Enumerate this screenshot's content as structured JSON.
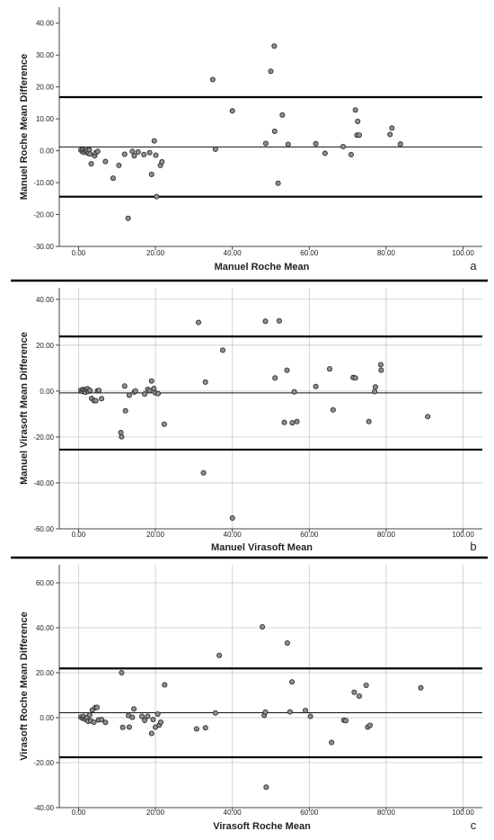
{
  "chart_data": [
    {
      "type": "scatter",
      "panel_label": "a",
      "xlabel": "Manuel Roche Mean",
      "ylabel": "Manuel Roche Mean Difference",
      "xlim": [
        -5,
        105
      ],
      "ylim": [
        -30,
        45
      ],
      "xticks": [
        0,
        20,
        40,
        60,
        80,
        100
      ],
      "yticks": [
        -30,
        -20,
        -10,
        0,
        10,
        20,
        30,
        40
      ],
      "grid": false,
      "reference_lines": {
        "mean": 1.2,
        "upper_loa": 16.8,
        "lower_loa": -14.4
      },
      "points": [
        [
          0.6,
          0.2
        ],
        [
          1.0,
          -0.3
        ],
        [
          1.2,
          0.4
        ],
        [
          1.5,
          -0.5
        ],
        [
          1.8,
          0.1
        ],
        [
          2.0,
          0.5
        ],
        [
          2.2,
          -0.2
        ],
        [
          2.5,
          -0.8
        ],
        [
          2.8,
          0.3
        ],
        [
          3.0,
          -1.0
        ],
        [
          3.3,
          -4.1
        ],
        [
          4.2,
          -1.6
        ],
        [
          4.5,
          -0.6
        ],
        [
          5.0,
          -0.2
        ],
        [
          7.0,
          -3.4
        ],
        [
          9.0,
          -8.6
        ],
        [
          10.5,
          -4.6
        ],
        [
          12.0,
          -1.1
        ],
        [
          12.9,
          -21.2
        ],
        [
          14.0,
          -0.2
        ],
        [
          14.5,
          -1.6
        ],
        [
          15.5,
          -0.4
        ],
        [
          17.0,
          -1.2
        ],
        [
          18.5,
          -0.6
        ],
        [
          19.0,
          -7.4
        ],
        [
          19.7,
          3.1
        ],
        [
          20.1,
          -1.4
        ],
        [
          20.3,
          -14.4
        ],
        [
          21.3,
          -4.6
        ],
        [
          21.7,
          -3.5
        ],
        [
          34.9,
          22.3
        ],
        [
          35.6,
          0.5
        ],
        [
          40.0,
          12.5
        ],
        [
          48.7,
          2.3
        ],
        [
          50.0,
          24.9
        ],
        [
          50.9,
          32.8
        ],
        [
          51.0,
          6.1
        ],
        [
          51.9,
          -10.2
        ],
        [
          53.0,
          11.2
        ],
        [
          54.5,
          2.0
        ],
        [
          61.7,
          2.2
        ],
        [
          64.1,
          -0.8
        ],
        [
          68.8,
          1.3
        ],
        [
          70.9,
          -1.2
        ],
        [
          72.0,
          12.8
        ],
        [
          72.4,
          4.9
        ],
        [
          72.6,
          9.2
        ],
        [
          73.0,
          4.9
        ],
        [
          81.0,
          5.1
        ],
        [
          81.5,
          7.1
        ],
        [
          83.7,
          2.1
        ]
      ]
    },
    {
      "type": "scatter",
      "panel_label": "b",
      "xlabel": "Manuel Virasoft Mean",
      "ylabel": "Manuel Virasoft Mean Difference",
      "xlim": [
        -5,
        105
      ],
      "ylim": [
        -60,
        45
      ],
      "xticks": [
        0,
        20,
        40,
        60,
        80,
        100
      ],
      "yticks": [
        -60,
        -40,
        -20,
        0,
        20,
        40
      ],
      "grid": true,
      "reference_lines": {
        "mean": -0.8,
        "upper_loa": 23.8,
        "lower_loa": -25.5
      },
      "points": [
        [
          0.6,
          0.4
        ],
        [
          1.0,
          -0.2
        ],
        [
          1.2,
          0.8
        ],
        [
          1.5,
          0.2
        ],
        [
          1.8,
          -0.5
        ],
        [
          2.1,
          0.6
        ],
        [
          2.3,
          1.0
        ],
        [
          2.6,
          -0.1
        ],
        [
          3.0,
          0.3
        ],
        [
          3.4,
          -3.2
        ],
        [
          4.0,
          -4.1
        ],
        [
          4.5,
          -4.2
        ],
        [
          4.9,
          0.1
        ],
        [
          5.3,
          0.3
        ],
        [
          6.0,
          -3.3
        ],
        [
          11.0,
          -18.1
        ],
        [
          11.2,
          -19.9
        ],
        [
          12.0,
          2.2
        ],
        [
          12.2,
          -8.6
        ],
        [
          13.2,
          -1.8
        ],
        [
          14.5,
          -0.4
        ],
        [
          14.8,
          0.1
        ],
        [
          17.2,
          -1.3
        ],
        [
          18.0,
          0.8
        ],
        [
          18.5,
          0.2
        ],
        [
          19.0,
          4.4
        ],
        [
          19.6,
          1.1
        ],
        [
          20.0,
          -0.8
        ],
        [
          20.7,
          -1.1
        ],
        [
          22.3,
          -14.4
        ],
        [
          31.2,
          29.9
        ],
        [
          32.5,
          -35.6
        ],
        [
          33.0,
          3.9
        ],
        [
          37.5,
          17.8
        ],
        [
          40.0,
          -55.3
        ],
        [
          48.6,
          30.4
        ],
        [
          51.1,
          5.7
        ],
        [
          52.2,
          30.6
        ],
        [
          53.5,
          -13.6
        ],
        [
          54.2,
          9.1
        ],
        [
          55.6,
          -13.8
        ],
        [
          56.1,
          -0.3
        ],
        [
          56.8,
          -13.3
        ],
        [
          61.7,
          2.0
        ],
        [
          65.3,
          9.7
        ],
        [
          66.2,
          -8.2
        ],
        [
          71.4,
          5.9
        ],
        [
          72.0,
          5.7
        ],
        [
          75.5,
          -13.3
        ],
        [
          77.0,
          -0.2
        ],
        [
          77.2,
          1.8
        ],
        [
          78.6,
          11.5
        ],
        [
          78.7,
          9.1
        ],
        [
          90.8,
          -11.1
        ]
      ]
    },
    {
      "type": "scatter",
      "panel_label": "c",
      "xlabel": "Virasoft Roche Mean",
      "ylabel": "Virasoft Roche Mean Difference",
      "xlim": [
        -5,
        105
      ],
      "ylim": [
        -40,
        68
      ],
      "xticks": [
        0,
        20,
        40,
        60,
        80,
        100
      ],
      "yticks": [
        -40,
        -20,
        0,
        20,
        40,
        60
      ],
      "grid": true,
      "reference_lines": {
        "mean": 2.2,
        "upper_loa": 21.9,
        "lower_loa": -17.6
      },
      "points": [
        [
          0.6,
          0.3
        ],
        [
          1.0,
          -0.2
        ],
        [
          1.3,
          0.6
        ],
        [
          1.6,
          -0.5
        ],
        [
          1.9,
          -0.8
        ],
        [
          2.2,
          0.1
        ],
        [
          2.5,
          -1.6
        ],
        [
          2.9,
          1.2
        ],
        [
          3.2,
          -1.4
        ],
        [
          3.6,
          3.4
        ],
        [
          4.0,
          -2.0
        ],
        [
          4.4,
          4.5
        ],
        [
          4.8,
          4.6
        ],
        [
          5.2,
          -1.0
        ],
        [
          6.0,
          -0.8
        ],
        [
          7.0,
          -2.1
        ],
        [
          11.2,
          20.0
        ],
        [
          11.5,
          -4.3
        ],
        [
          13.0,
          1.0
        ],
        [
          13.2,
          -4.2
        ],
        [
          14.0,
          0.2
        ],
        [
          14.4,
          3.9
        ],
        [
          16.5,
          0.6
        ],
        [
          17.2,
          -1.2
        ],
        [
          18.0,
          0.6
        ],
        [
          19.0,
          -7.0
        ],
        [
          19.4,
          -0.8
        ],
        [
          20.0,
          -4.2
        ],
        [
          20.6,
          1.6
        ],
        [
          21.0,
          -3.3
        ],
        [
          21.4,
          -2.0
        ],
        [
          22.4,
          14.6
        ],
        [
          30.7,
          -5.0
        ],
        [
          33.0,
          -4.5
        ],
        [
          35.6,
          2.1
        ],
        [
          36.6,
          27.7
        ],
        [
          47.8,
          40.4
        ],
        [
          48.3,
          1.0
        ],
        [
          48.6,
          2.5
        ],
        [
          48.8,
          -30.9
        ],
        [
          54.3,
          33.2
        ],
        [
          55.0,
          2.6
        ],
        [
          55.5,
          15.9
        ],
        [
          59.0,
          3.2
        ],
        [
          60.3,
          0.6
        ],
        [
          65.8,
          -11.0
        ],
        [
          69.0,
          -1.1
        ],
        [
          69.5,
          -1.3
        ],
        [
          71.7,
          11.3
        ],
        [
          73.0,
          9.6
        ],
        [
          74.8,
          14.4
        ],
        [
          75.2,
          -4.2
        ],
        [
          75.8,
          -3.4
        ],
        [
          89.0,
          13.3
        ]
      ]
    }
  ]
}
